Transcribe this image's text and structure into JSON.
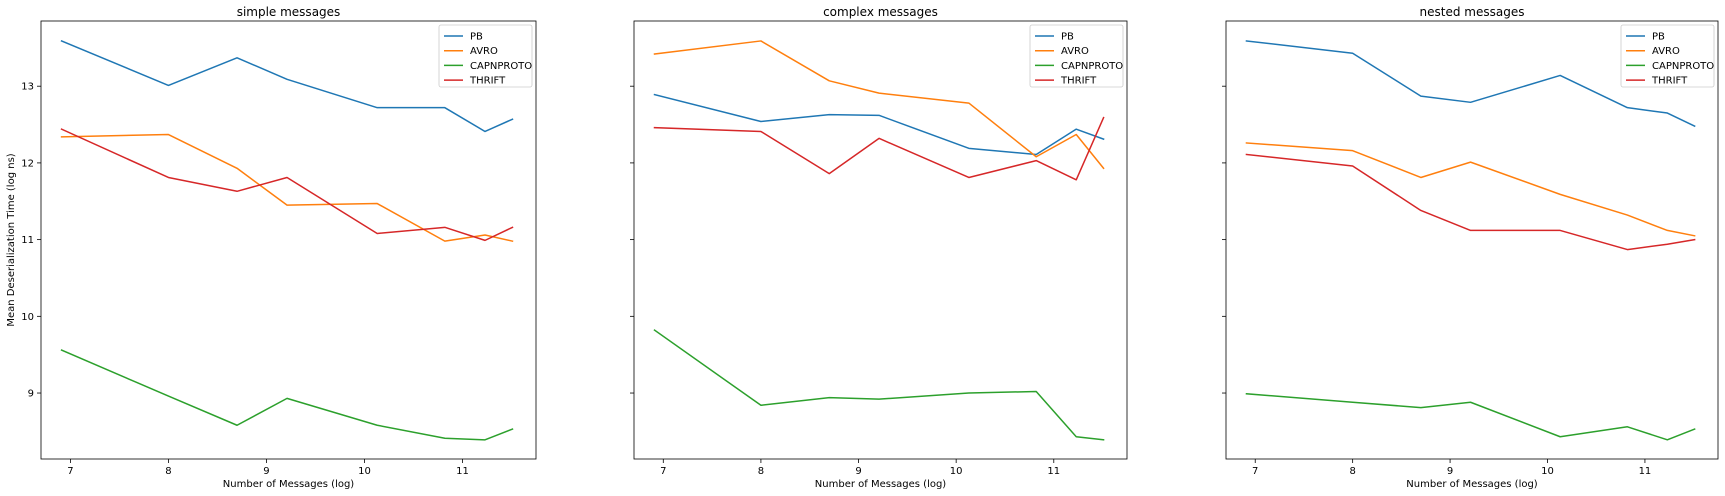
{
  "chart_data": [
    {
      "type": "line",
      "title": "simple messages",
      "xlabel": "Number of Messages (log)",
      "ylabel": "Mean Deserialization Time (log ns)",
      "xlim": [
        6.7,
        11.75
      ],
      "ylim": [
        8.14,
        13.85
      ],
      "xticks": [
        7,
        8,
        9,
        10,
        11
      ],
      "yticks": [
        9,
        10,
        11,
        12,
        13
      ],
      "show_ytick_labels": true,
      "grid": false,
      "legend": "top-right",
      "x": [
        6.91,
        8.0,
        8.7,
        9.21,
        10.13,
        10.82,
        11.23,
        11.51
      ],
      "series": [
        {
          "name": "PB",
          "color": "#1f77b4",
          "values": [
            13.59,
            13.01,
            13.37,
            13.09,
            12.72,
            12.72,
            12.41,
            12.57
          ]
        },
        {
          "name": "AVRO",
          "color": "#ff7f0e",
          "values": [
            12.34,
            12.37,
            11.93,
            11.45,
            11.47,
            10.98,
            11.06,
            10.98
          ]
        },
        {
          "name": "CAPNPROTO",
          "color": "#2ca02c",
          "values": [
            9.56,
            8.96,
            8.58,
            8.93,
            8.58,
            8.41,
            8.39,
            8.53
          ]
        },
        {
          "name": "THRIFT",
          "color": "#d62728",
          "values": [
            12.44,
            11.81,
            11.63,
            11.81,
            11.08,
            11.16,
            10.99,
            11.16
          ]
        }
      ]
    },
    {
      "type": "line",
      "title": "complex messages",
      "xlabel": "Number of Messages (log)",
      "ylabel": "",
      "xlim": [
        6.7,
        11.75
      ],
      "ylim": [
        8.14,
        13.85
      ],
      "xticks": [
        7,
        8,
        9,
        10,
        11
      ],
      "yticks": [
        9,
        10,
        11,
        12,
        13
      ],
      "show_ytick_labels": false,
      "grid": false,
      "legend": "top-right",
      "x": [
        6.91,
        8.0,
        8.7,
        9.21,
        10.13,
        10.82,
        11.23,
        11.51
      ],
      "series": [
        {
          "name": "PB",
          "color": "#1f77b4",
          "values": [
            12.89,
            12.54,
            12.63,
            12.62,
            12.19,
            12.11,
            12.44,
            12.31
          ]
        },
        {
          "name": "AVRO",
          "color": "#ff7f0e",
          "values": [
            13.42,
            13.59,
            13.07,
            12.91,
            12.78,
            12.08,
            12.37,
            11.93
          ]
        },
        {
          "name": "CAPNPROTO",
          "color": "#2ca02c",
          "values": [
            9.82,
            8.84,
            8.94,
            8.92,
            9.0,
            9.02,
            8.43,
            8.39
          ]
        },
        {
          "name": "THRIFT",
          "color": "#d62728",
          "values": [
            12.46,
            12.41,
            11.86,
            12.32,
            11.81,
            12.03,
            11.78,
            12.59
          ]
        }
      ]
    },
    {
      "type": "line",
      "title": "nested messages",
      "xlabel": "Number of Messages (log)",
      "ylabel": "",
      "xlim": [
        6.7,
        11.75
      ],
      "ylim": [
        8.14,
        13.85
      ],
      "xticks": [
        7,
        8,
        9,
        10,
        11
      ],
      "yticks": [
        9,
        10,
        11,
        12,
        13
      ],
      "show_ytick_labels": false,
      "grid": false,
      "legend": "top-right",
      "x": [
        6.91,
        8.0,
        8.7,
        9.21,
        10.13,
        10.82,
        11.23,
        11.51
      ],
      "series": [
        {
          "name": "PB",
          "color": "#1f77b4",
          "values": [
            13.59,
            13.43,
            12.87,
            12.79,
            13.14,
            12.72,
            12.65,
            12.48
          ]
        },
        {
          "name": "AVRO",
          "color": "#ff7f0e",
          "values": [
            12.26,
            12.16,
            11.81,
            12.01,
            11.59,
            11.32,
            11.12,
            11.05
          ]
        },
        {
          "name": "CAPNPROTO",
          "color": "#2ca02c",
          "values": [
            8.99,
            8.88,
            8.81,
            8.88,
            8.43,
            8.56,
            8.39,
            8.53
          ]
        },
        {
          "name": "THRIFT",
          "color": "#d62728",
          "values": [
            12.11,
            11.96,
            11.38,
            11.12,
            11.12,
            10.87,
            10.94,
            11.0
          ]
        }
      ]
    }
  ]
}
